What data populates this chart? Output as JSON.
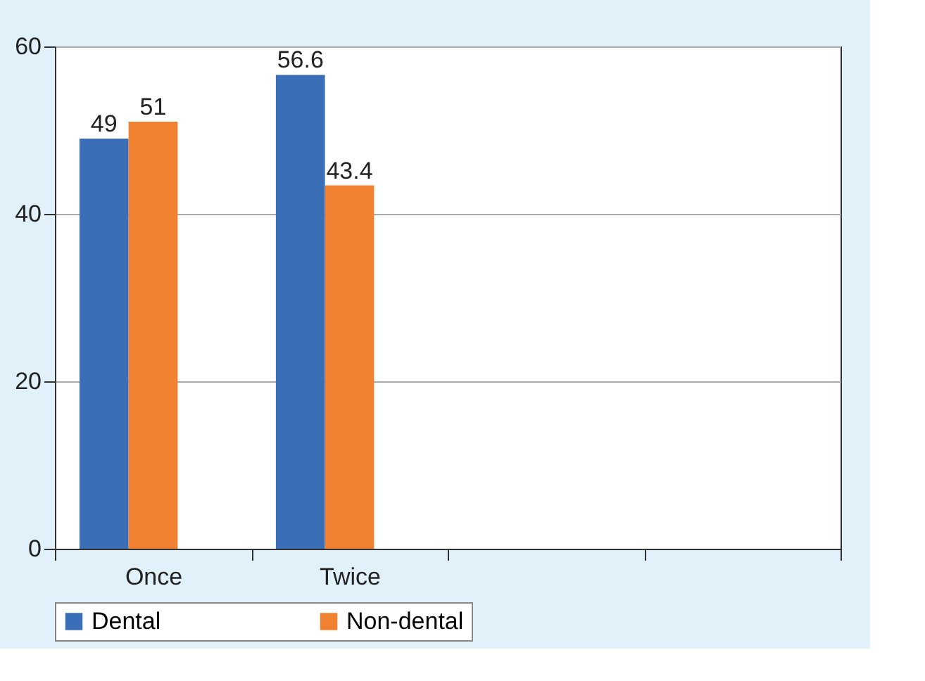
{
  "chart_data": {
    "type": "bar",
    "categories": [
      "Once",
      "Twice",
      null,
      null
    ],
    "series": [
      {
        "name": "Dental",
        "color": "#3a6fb7",
        "values": [
          49,
          56.6,
          null,
          null
        ]
      },
      {
        "name": "Non-dental",
        "color": "#f08131",
        "values": [
          51,
          43.4,
          null,
          null
        ]
      }
    ],
    "ylim": [
      0,
      60
    ],
    "yticks": [
      0,
      20,
      40,
      60
    ],
    "grid": "y",
    "legend": "bottom",
    "data_labels": true
  }
}
